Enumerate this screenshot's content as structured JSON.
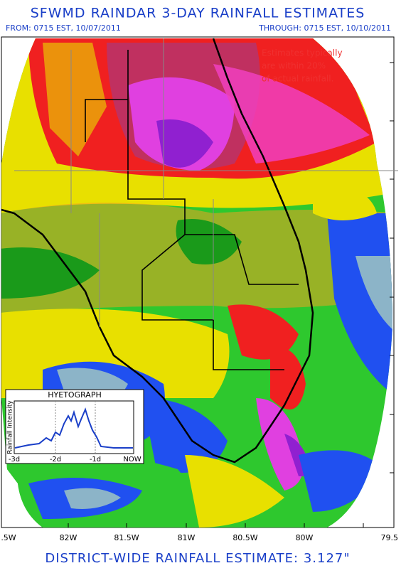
{
  "header": {
    "title": "SFWMD RAINDAR 3-DAY RAINFALL ESTIMATES",
    "from": "FROM: 0715 EST, 10/07/2011",
    "through": "THROUGH: 0715 EST, 10/10/2011"
  },
  "note": [
    "Estimates typically",
    "are within 20%",
    "of actual rainfall."
  ],
  "longitude_labels": [
    ".5W",
    "82W",
    "81.5W",
    "81W",
    "80.5W",
    "80W",
    "79.5"
  ],
  "hyetograph": {
    "title": "HYETOGRAPH",
    "y_label": "Rainfall Intensity",
    "x_labels": [
      "-3d",
      "-2d",
      "-1d",
      "NOW"
    ]
  },
  "footer": "DISTRICT-WIDE RAINFALL ESTIMATE: 3.127\""
}
